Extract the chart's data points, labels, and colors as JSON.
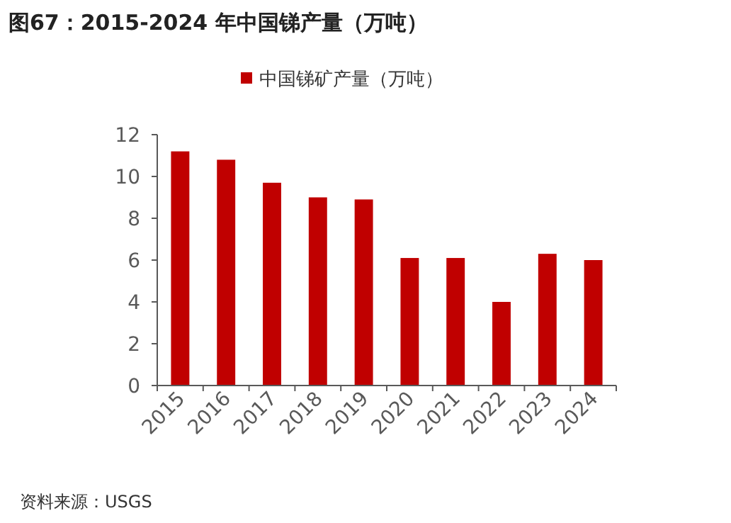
{
  "chart_data": {
    "type": "bar",
    "title": "图67：2015-2024 年中国锑产量（万吨）",
    "categories": [
      "2015",
      "2016",
      "2017",
      "2018",
      "2019",
      "2020",
      "2021",
      "2022",
      "2023",
      "2024"
    ],
    "series": [
      {
        "name": "中国锑矿产量（万吨）",
        "color": "#c00000",
        "values": [
          11.2,
          10.8,
          9.7,
          9.0,
          8.9,
          6.1,
          6.1,
          4.0,
          6.3,
          6.0
        ]
      }
    ],
    "ylim": [
      0,
      12
    ],
    "yticks": [
      0,
      2,
      4,
      6,
      8,
      10,
      12
    ],
    "legend": "top",
    "grid": false,
    "annotations": [
      "资料来源：USGS"
    ]
  }
}
